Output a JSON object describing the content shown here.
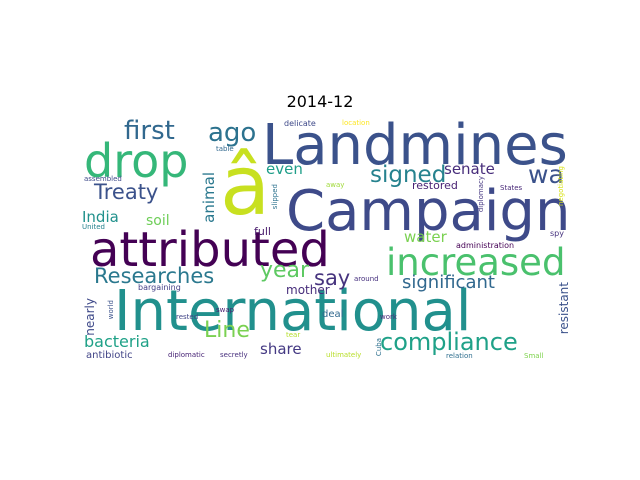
{
  "title": "2014-12",
  "words": [
    {
      "text": "International",
      "color": "#21908d"
    },
    {
      "text": "Landmines",
      "color": "#3b528b"
    },
    {
      "text": "Campaign",
      "color": "#3e4a89"
    },
    {
      "text": "â",
      "color": "#c8e020"
    },
    {
      "text": "attributed",
      "color": "#440154"
    },
    {
      "text": "drop",
      "color": "#35b779"
    },
    {
      "text": "increased",
      "color": "#4ac16d"
    },
    {
      "text": "compliance",
      "color": "#1fa188"
    },
    {
      "text": "first",
      "color": "#31688e"
    },
    {
      "text": "ago",
      "color": "#2c728e"
    },
    {
      "text": "Treaty",
      "color": "#3b528b"
    },
    {
      "text": "signed",
      "color": "#26828e"
    },
    {
      "text": "wa",
      "color": "#3b528b"
    },
    {
      "text": "Line",
      "color": "#7ad151"
    },
    {
      "text": "Researches",
      "color": "#2a788e"
    },
    {
      "text": "year",
      "color": "#5ec962"
    },
    {
      "text": "say",
      "color": "#46337e"
    },
    {
      "text": "significant",
      "color": "#31688e"
    },
    {
      "text": "water",
      "color": "#7ad151"
    },
    {
      "text": "senate",
      "color": "#472d7b"
    },
    {
      "text": "even",
      "color": "#1f9e89"
    },
    {
      "text": "share",
      "color": "#443983"
    },
    {
      "text": "bacteria",
      "color": "#1fa187"
    },
    {
      "text": "India",
      "color": "#21918c"
    },
    {
      "text": "soil",
      "color": "#6ece58"
    },
    {
      "text": "animal",
      "color": "#2a788e"
    },
    {
      "text": "resistant",
      "color": "#3b528b"
    },
    {
      "text": "mother",
      "color": "#472d7b"
    },
    {
      "text": "nearly",
      "color": "#3e4989"
    },
    {
      "text": "antibiotic",
      "color": "#414487"
    },
    {
      "text": "full",
      "color": "#481a6c"
    },
    {
      "text": "deal",
      "color": "#31688e"
    },
    {
      "text": "restored",
      "color": "#482173"
    },
    {
      "text": "administration",
      "color": "#440154"
    },
    {
      "text": "spy",
      "color": "#46327e"
    },
    {
      "text": "diplomacy",
      "color": "#453781"
    },
    {
      "text": "negotiating",
      "color": "#d8e219"
    },
    {
      "text": "States",
      "color": "#482878"
    },
    {
      "text": "delicate",
      "color": "#3e4989"
    },
    {
      "text": "location",
      "color": "#fde725"
    },
    {
      "text": "table",
      "color": "#31688e"
    },
    {
      "text": "assembled",
      "color": "#3e4a89"
    },
    {
      "text": "slipped",
      "color": "#2c728e"
    },
    {
      "text": "away",
      "color": "#a0da39"
    },
    {
      "text": "United",
      "color": "#26828e"
    },
    {
      "text": "rested",
      "color": "#414487"
    },
    {
      "text": "bargaining",
      "color": "#433e85"
    },
    {
      "text": "swap",
      "color": "#481f70"
    },
    {
      "text": "world",
      "color": "#3b528b"
    },
    {
      "text": "around",
      "color": "#46307e"
    },
    {
      "text": "Cuba",
      "color": "#2d708e"
    },
    {
      "text": "work",
      "color": "#472c7a"
    },
    {
      "text": "tear",
      "color": "#b5de2b"
    },
    {
      "text": "diplomatic",
      "color": "#482576"
    },
    {
      "text": "secretly",
      "color": "#472f7d"
    },
    {
      "text": "ultimately",
      "color": "#b8de29"
    },
    {
      "text": "relation",
      "color": "#2e6e8e"
    },
    {
      "text": "Small",
      "color": "#7fd34e"
    }
  ]
}
